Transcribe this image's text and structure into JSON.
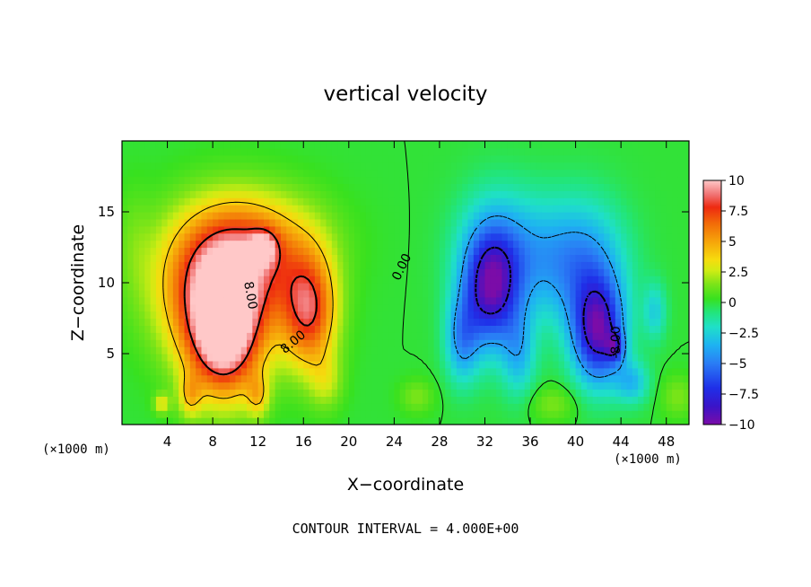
{
  "chart_data": {
    "type": "heatmap",
    "title": "vertical velocity",
    "xlabel": "X−coordinate",
    "ylabel": "Z−coordinate",
    "x_unit_left": "(×1000 m)",
    "x_unit_right": "(×1000 m)",
    "footer": "CONTOUR INTERVAL = 4.000E+00",
    "xlim": [
      0,
      50
    ],
    "ylim": [
      0,
      20
    ],
    "x_ticks": [
      4,
      8,
      12,
      16,
      20,
      24,
      28,
      32,
      36,
      40,
      44,
      48
    ],
    "y_ticks": [
      5,
      10,
      15
    ],
    "colorbar": {
      "min": -10,
      "max": 10,
      "ticks": [
        10,
        7.5,
        5,
        2.5,
        0,
        -2.5,
        -5,
        -7.5,
        -10
      ],
      "tick_labels": [
        "10",
        "7.5",
        "5",
        "2.5",
        "0",
        "−2.5",
        "−5",
        "−7.5",
        "−10"
      ],
      "stops": [
        {
          "v": -10,
          "c": "#7b0ca8"
        },
        {
          "v": -8.5,
          "c": "#3a14c8"
        },
        {
          "v": -7,
          "c": "#1f2fe8"
        },
        {
          "v": -5,
          "c": "#2a7cf5"
        },
        {
          "v": -3.5,
          "c": "#1eb2f2"
        },
        {
          "v": -2,
          "c": "#1fe0c8"
        },
        {
          "v": -0.8,
          "c": "#22e57a"
        },
        {
          "v": 0.3,
          "c": "#38e11f"
        },
        {
          "v": 1.5,
          "c": "#7ce418"
        },
        {
          "v": 2.6,
          "c": "#cfec14"
        },
        {
          "v": 3.5,
          "c": "#f6dc0e"
        },
        {
          "v": 5,
          "c": "#f6a40a"
        },
        {
          "v": 6.5,
          "c": "#f26a08"
        },
        {
          "v": 7.8,
          "c": "#ee2a10"
        },
        {
          "v": 8.8,
          "c": "#f07070"
        },
        {
          "v": 10,
          "c": "#ffc8c8"
        }
      ]
    },
    "contour_labels": [
      {
        "text": "0.00",
        "x": 24.7,
        "y": 11.1,
        "angle": -64
      },
      {
        "text": "8.00",
        "x": 11.3,
        "y": 9.1,
        "angle": 80
      },
      {
        "text": "8.00",
        "x": 15.1,
        "y": 5.8,
        "angle": -40
      },
      {
        "text": "-8.00",
        "x": 43.6,
        "y": 5.8,
        "angle": -90
      }
    ],
    "field_features": [
      {
        "x": 9,
        "z": 6,
        "sx": 3.2,
        "sz": 4.2,
        "amp": 9
      },
      {
        "x": 8,
        "z": 9.5,
        "sx": 5,
        "sz": 5,
        "amp": 6
      },
      {
        "x": 10.5,
        "z": 11,
        "sx": 5.5,
        "sz": 4.5,
        "amp": 4
      },
      {
        "x": 16.5,
        "z": 8,
        "sx": 2.4,
        "sz": 4,
        "amp": 7.5
      },
      {
        "x": 12,
        "z": 13,
        "sx": 6,
        "sz": 3.5,
        "amp": 3
      },
      {
        "x": 12.5,
        "z": 12.5,
        "sx": 1.2,
        "sz": 1.2,
        "amp": 4
      },
      {
        "x": 6,
        "z": 2,
        "sx": 1,
        "sz": 1.5,
        "amp": 3
      },
      {
        "x": 12,
        "z": 2,
        "sx": 1,
        "sz": 1.5,
        "amp": 3
      },
      {
        "x": 18,
        "z": 3,
        "sx": 1.5,
        "sz": 2,
        "amp": 2
      },
      {
        "x": 3.5,
        "z": 1.5,
        "sx": 0.7,
        "sz": 0.7,
        "amp": 3
      },
      {
        "x": 32.5,
        "z": 9.5,
        "sx": 2.4,
        "sz": 4,
        "amp": -7.5
      },
      {
        "x": 33,
        "z": 12,
        "sx": 3.5,
        "sz": 4.5,
        "amp": -3
      },
      {
        "x": 37,
        "z": 12,
        "sx": 4,
        "sz": 4,
        "amp": -2.5
      },
      {
        "x": 42,
        "z": 6.5,
        "sx": 2.2,
        "sz": 3.5,
        "amp": -8.5
      },
      {
        "x": 43.5,
        "z": 5.5,
        "sx": 0.8,
        "sz": 1,
        "amp": -4
      },
      {
        "x": 41,
        "z": 11,
        "sx": 3.5,
        "sz": 4.5,
        "amp": -4
      },
      {
        "x": 30,
        "z": 6,
        "sx": 1.5,
        "sz": 3,
        "amp": -4
      },
      {
        "x": 35,
        "z": 5,
        "sx": 1.5,
        "sz": 3,
        "amp": -3
      },
      {
        "x": 47,
        "z": 8,
        "sx": 1,
        "sz": 2,
        "amp": -2.5
      },
      {
        "x": 45,
        "z": 3,
        "sx": 1.5,
        "sz": 1.5,
        "amp": -3
      },
      {
        "x": 26,
        "z": 2,
        "sx": 1.5,
        "sz": 1.2,
        "amp": 1.5
      },
      {
        "x": 38,
        "z": 1.5,
        "sx": 2,
        "sz": 1.2,
        "amp": 1.5
      },
      {
        "x": 49,
        "z": 2,
        "sx": 1.5,
        "sz": 1.5,
        "amp": 1.5
      },
      {
        "x": 1,
        "z": 13,
        "sx": 1.5,
        "sz": 4,
        "amp": 0.8
      }
    ]
  }
}
